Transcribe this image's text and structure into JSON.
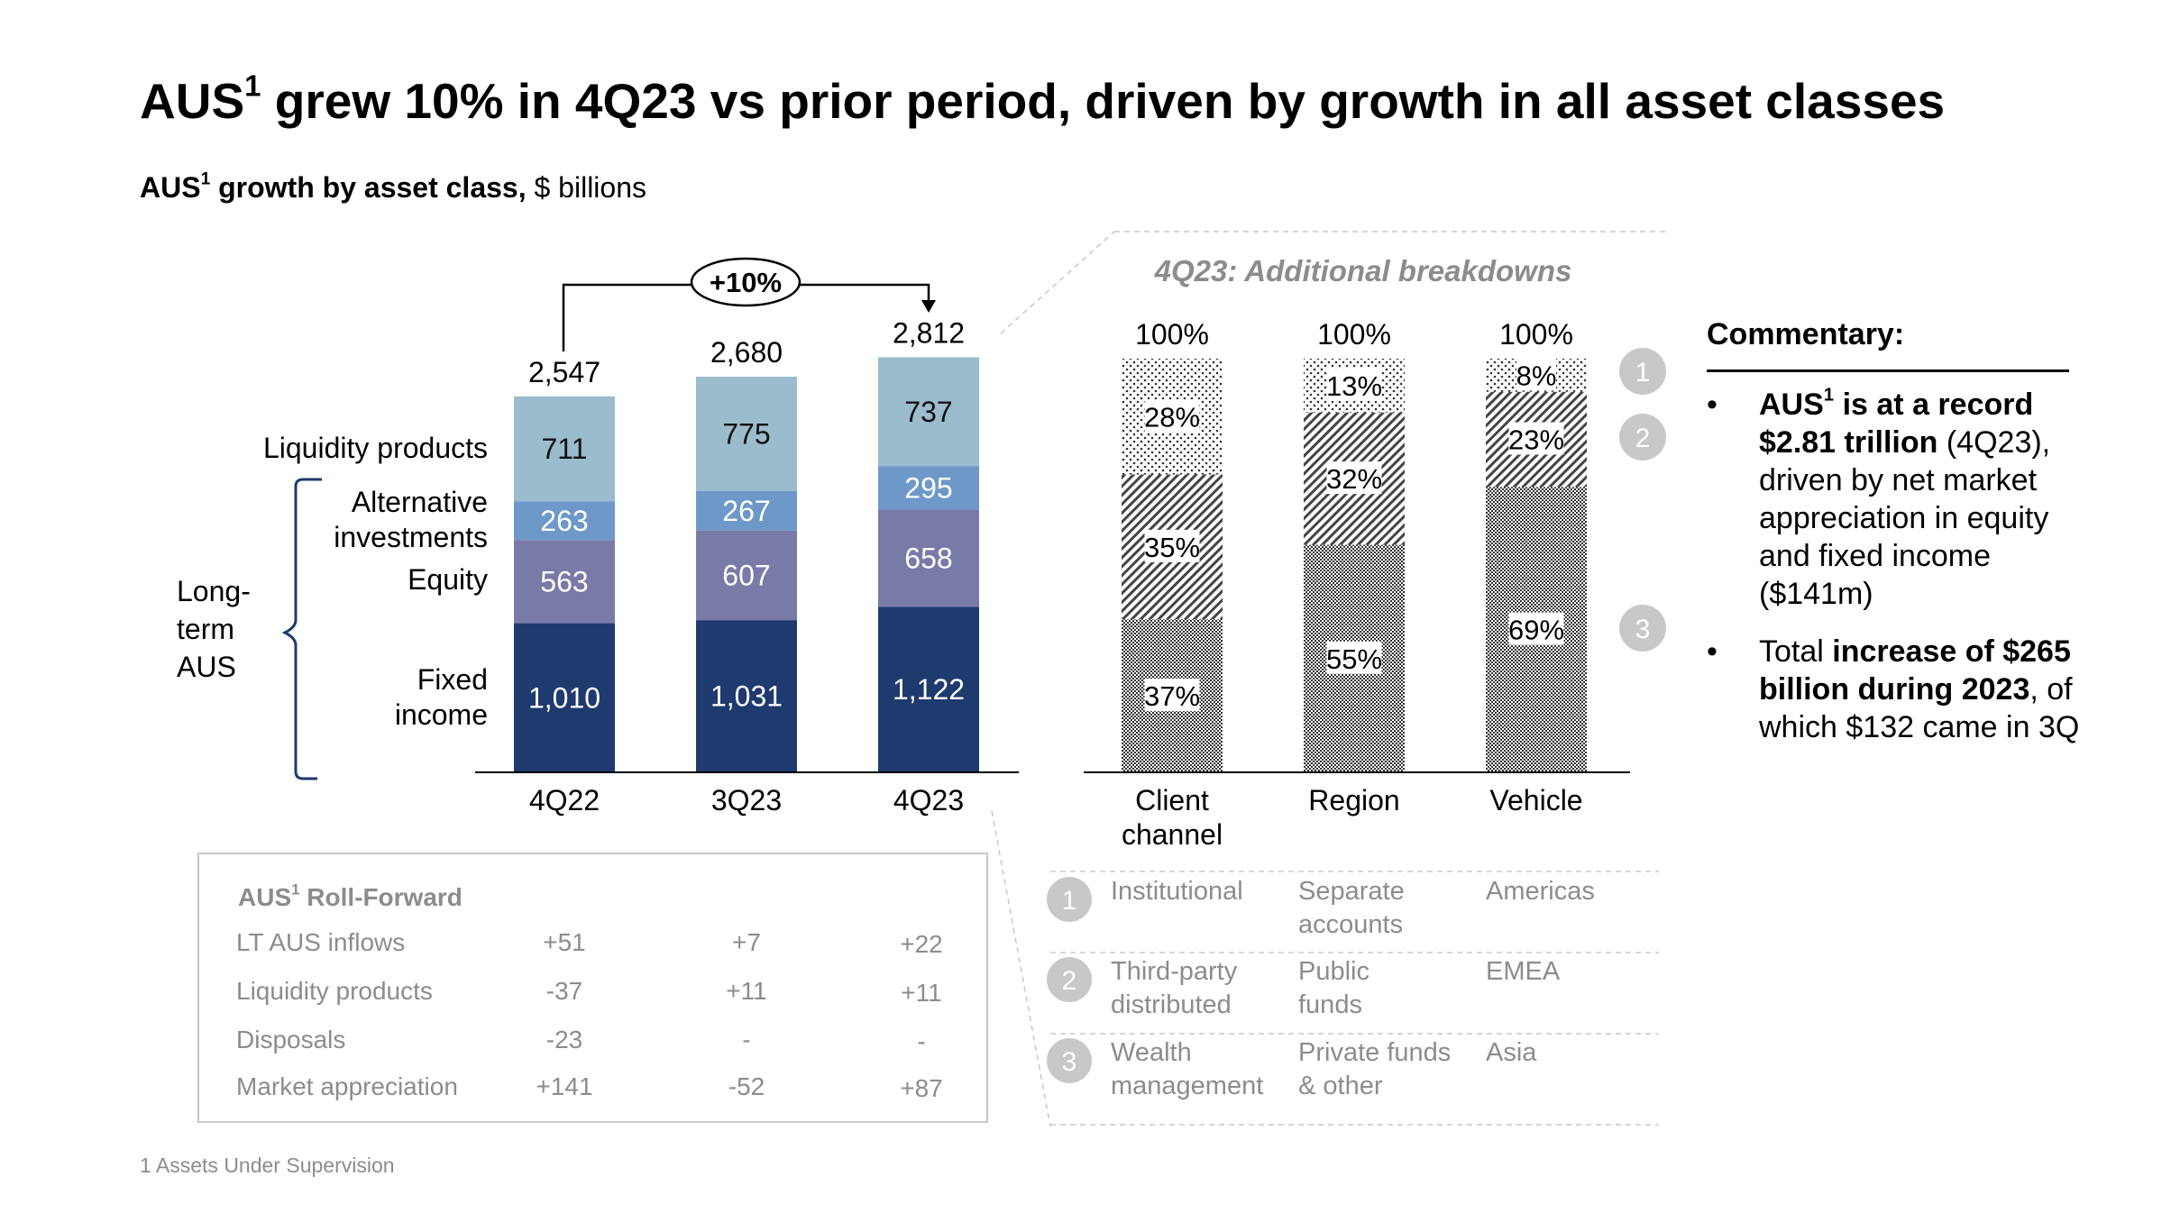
{
  "title": {
    "prefix": "AUS",
    "sup": "1",
    "rest": " grew 10% in 4Q23 vs prior period, driven by growth in all asset classes"
  },
  "subtitle": {
    "bold_prefix": "AUS",
    "sup": "1",
    "bold_rest": " growth by asset class,",
    "rest": " $ billions"
  },
  "growth_label": "+10%",
  "long_term_label": [
    "Long-",
    "term",
    "AUS"
  ],
  "category_labels": [
    {
      "key": "liquidity",
      "lines": [
        "Liquidity products"
      ]
    },
    {
      "key": "alternative",
      "lines": [
        "Alternative",
        "investments"
      ]
    },
    {
      "key": "equity",
      "lines": [
        "Equity"
      ]
    },
    {
      "key": "fixed",
      "lines": [
        "Fixed",
        "income"
      ]
    }
  ],
  "breakdown_title": "4Q23: Additional breakdowns",
  "commentary": {
    "heading": "Commentary:",
    "bullet1": {
      "b1": "AUS",
      "sup": "1",
      "b2": " is at a record $2.81 trillion",
      "rest": " (4Q23), driven by net market appreciation in equity and fixed income ($141m)"
    },
    "bullet2": {
      "pre": "Total ",
      "bold": "increase of $265 billion during 2023",
      "rest": ", of which $132 came in 3Q"
    },
    "bullet_char": "•"
  },
  "roll_forward": {
    "title_prefix": "AUS",
    "title_sup": "1",
    "title_rest": " Roll-Forward",
    "rows": [
      {
        "label": "LT AUS inflows",
        "values": [
          "+51",
          "+7",
          "+22"
        ]
      },
      {
        "label": "Liquidity products",
        "values": [
          "-37",
          "+11",
          "+11"
        ]
      },
      {
        "label": "Disposals",
        "values": [
          "-23",
          "-",
          "-"
        ]
      },
      {
        "label": "Market appreciation",
        "values": [
          "+141",
          "-52",
          "+87"
        ]
      }
    ]
  },
  "breakdown_legend": [
    {
      "num": "1",
      "cols": [
        [
          "Institutional"
        ],
        [
          "Separate",
          "accounts"
        ],
        [
          "Americas"
        ]
      ]
    },
    {
      "num": "2",
      "cols": [
        [
          "Third-party",
          "distributed"
        ],
        [
          "Public",
          "funds"
        ],
        [
          "EMEA"
        ]
      ]
    },
    {
      "num": "3",
      "cols": [
        [
          "Wealth",
          "management"
        ],
        [
          "Private funds",
          "& other"
        ],
        [
          "Asia"
        ]
      ]
    }
  ],
  "footnote": "1 Assets Under Supervision",
  "colors": {
    "fixed": "#1f3a6e",
    "equity": "#7a7aa8",
    "alternative": "#6d98c8",
    "liquidity": "#9bbccd",
    "gray": "#8c8c8c",
    "circle": "#c8c8c8"
  },
  "chart_data": [
    {
      "type": "bar",
      "stacked": true,
      "categories": [
        "4Q22",
        "3Q23",
        "4Q23"
      ],
      "totals": [
        "2,547",
        "2,680",
        "2,812"
      ],
      "series": [
        {
          "name": "Fixed income",
          "values": [
            1010,
            1031,
            1122
          ],
          "labels": [
            "1,010",
            "1,031",
            "1,122"
          ]
        },
        {
          "name": "Equity",
          "values": [
            563,
            607,
            658
          ],
          "labels": [
            "563",
            "607",
            "658"
          ]
        },
        {
          "name": "Alternative investments",
          "values": [
            263,
            267,
            295
          ],
          "labels": [
            "263",
            "267",
            "295"
          ]
        },
        {
          "name": "Liquidity products",
          "values": [
            711,
            775,
            737
          ],
          "labels": [
            "711",
            "775",
            "737"
          ]
        }
      ]
    },
    {
      "type": "bar",
      "stacked": true,
      "percent": true,
      "categories": [
        [
          "Client",
          "channel"
        ],
        [
          "Region"
        ],
        [
          "Vehicle"
        ]
      ],
      "totals": [
        "100%",
        "100%",
        "100%"
      ],
      "series": [
        {
          "name": "3",
          "values": [
            37,
            55,
            69
          ]
        },
        {
          "name": "2",
          "values": [
            35,
            32,
            23
          ]
        },
        {
          "name": "1",
          "values": [
            28,
            13,
            8
          ]
        }
      ]
    }
  ]
}
